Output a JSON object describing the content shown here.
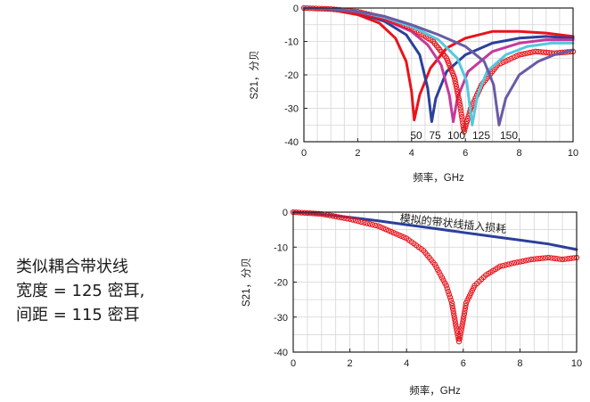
{
  "caption": {
    "line1": "类似耦合带状线",
    "line2": "宽度 = 125 密耳,",
    "line3": "间距 = 115 密耳"
  },
  "chart_data": [
    {
      "type": "line",
      "xlabel": "频率，GHz",
      "ylabel": "S21，分贝",
      "xlim": [
        0,
        10
      ],
      "ylim": [
        -40,
        0
      ],
      "xticks": [
        0,
        2,
        4,
        6,
        8,
        10
      ],
      "yticks": [
        0,
        -10,
        -20,
        -30,
        -40
      ],
      "grid": true,
      "annotations": [
        "50",
        "75",
        "100",
        "125",
        "150"
      ],
      "series": [
        {
          "color": "#e8141c",
          "style": "line",
          "x": [
            0,
            1,
            2,
            2.8,
            3.4,
            3.8,
            4.0,
            4.1,
            4.3,
            4.7,
            5.3,
            6.0,
            7.0,
            8.0,
            9.0,
            10.0
          ],
          "y": [
            0,
            -0.5,
            -2,
            -4.5,
            -9,
            -16,
            -25,
            -33.5,
            -26,
            -18,
            -12,
            -9,
            -7,
            -7,
            -7.5,
            -8.5
          ]
        },
        {
          "color": "#2b3f9c",
          "style": "line",
          "x": [
            0,
            1,
            2,
            3,
            3.8,
            4.3,
            4.6,
            4.75,
            4.9,
            5.3,
            6.0,
            7.0,
            8.0,
            9.0,
            10.0
          ],
          "y": [
            0,
            -0.4,
            -1.5,
            -4,
            -8,
            -14,
            -24,
            -34,
            -27,
            -19,
            -14,
            -10.5,
            -9,
            -8.5,
            -9
          ]
        },
        {
          "color": "#c43a9c",
          "style": "line",
          "x": [
            0,
            1,
            2,
            3,
            4,
            4.6,
            5.1,
            5.4,
            5.55,
            5.7,
            6.1,
            7.0,
            8.0,
            9.0,
            10.0
          ],
          "y": [
            0,
            -0.3,
            -1.2,
            -3.5,
            -7,
            -11,
            -17,
            -26,
            -34,
            -27,
            -19,
            -13,
            -10.5,
            -9.5,
            -9.5
          ]
        },
        {
          "color": "#e8141c",
          "style": "markers",
          "x": [
            0,
            1,
            2,
            3,
            4,
            4.8,
            5.3,
            5.6,
            5.8,
            5.95,
            6.2,
            6.6,
            7.2,
            8.0,
            8.6,
            9.3,
            10.0
          ],
          "y": [
            0,
            -0.3,
            -1.1,
            -3,
            -6,
            -10,
            -15,
            -21,
            -29,
            -37,
            -30,
            -23,
            -17,
            -14,
            -13,
            -13.5,
            -13
          ]
        },
        {
          "color": "#55c8dd",
          "style": "line",
          "x": [
            0,
            1,
            2,
            3,
            4,
            5,
            5.7,
            6.05,
            6.25,
            6.45,
            6.8,
            7.5,
            8.3,
            9.2,
            10.0
          ],
          "y": [
            0,
            -0.3,
            -1,
            -2.8,
            -5.5,
            -9.5,
            -15,
            -22,
            -35,
            -26,
            -19,
            -14,
            -11.5,
            -10.5,
            -10.5
          ]
        },
        {
          "color": "#6b5aa6",
          "style": "line",
          "x": [
            0,
            1,
            2,
            3,
            4,
            5,
            6,
            6.7,
            7.05,
            7.25,
            7.5,
            8.0,
            8.7,
            9.3,
            10.0
          ],
          "y": [
            0,
            -0.3,
            -1,
            -2.5,
            -5,
            -8,
            -11.5,
            -16,
            -23,
            -35,
            -27,
            -20,
            -16,
            -14,
            -12.5
          ]
        }
      ]
    },
    {
      "type": "line",
      "xlabel": "频率，GHz",
      "ylabel": "S21，分贝",
      "xlim": [
        0,
        10
      ],
      "ylim": [
        -40,
        0
      ],
      "xticks": [
        0,
        2,
        4,
        6,
        8,
        10
      ],
      "yticks": [
        0,
        -10,
        -20,
        -30,
        -40
      ],
      "grid": true,
      "annotations": [
        "模拟的带状线插入损耗"
      ],
      "series": [
        {
          "color": "#2b3f9c",
          "style": "line",
          "x": [
            0,
            1,
            2,
            3,
            4,
            5,
            6,
            7,
            8,
            9,
            10
          ],
          "y": [
            0,
            -0.6,
            -1.5,
            -2.5,
            -3.6,
            -4.7,
            -5.8,
            -6.9,
            -8.0,
            -9.1,
            -10.7
          ]
        },
        {
          "color": "#e8141c",
          "style": "markers",
          "x": [
            0,
            1,
            2,
            3,
            4,
            4.6,
            5.0,
            5.4,
            5.6,
            5.75,
            5.85,
            5.95,
            6.1,
            6.4,
            6.8,
            7.3,
            7.8,
            8.4,
            9.0,
            9.5,
            10.0
          ],
          "y": [
            0,
            -0.5,
            -2,
            -4,
            -7.5,
            -11,
            -15,
            -21,
            -26,
            -33,
            -37,
            -33,
            -26,
            -21,
            -18,
            -15.5,
            -14.5,
            -13.5,
            -13,
            -13.5,
            -13
          ]
        }
      ]
    }
  ]
}
